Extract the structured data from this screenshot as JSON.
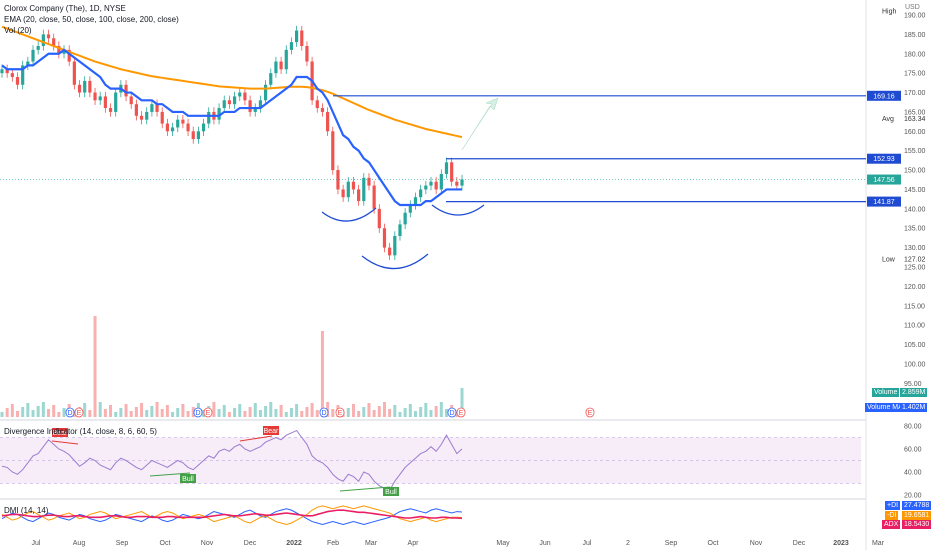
{
  "header": {
    "title": "Clorox Company (The), 1D, NYSE",
    "ema_label": "EMA (20, close, 50, close, 100, close, 200, close)",
    "vol_label": "Vol (20)",
    "currency": "USD"
  },
  "colors": {
    "ema20": "#2962ff",
    "ema50": "#43a047",
    "ema100": "#e57373",
    "ema200": "#ff9800",
    "up": "#26a69a",
    "down": "#ef5350",
    "level_line": "#1e4bd2",
    "rsi_line": "#9c7bd0",
    "dmi_plus": "#2962ff",
    "dmi_minus": "#ff9800",
    "adx": "#e91e63"
  },
  "chart_data": [
    {
      "type": "candlestick",
      "name": "price",
      "y_ticks": [
        125,
        130,
        135,
        140,
        145,
        150,
        155,
        160,
        165,
        170,
        175,
        180,
        185,
        190
      ],
      "lower_ticks": [
        95,
        100,
        105,
        110,
        115,
        120
      ],
      "x_ticks": [
        "Jul",
        "Aug",
        "Sep",
        "Oct",
        "Nov",
        "Dec",
        "2022",
        "Feb",
        "Mar",
        "Apr",
        "May",
        "Jun",
        "Jul",
        "2",
        "Sep",
        "Oct",
        "Nov",
        "Dec",
        "2023",
        "Mar"
      ],
      "price_labels": [
        {
          "text": "High",
          "value": 191
        },
        {
          "text": "Avg",
          "value": 163.34
        },
        {
          "text": "Low",
          "value": 127.02
        }
      ],
      "levels": [
        {
          "value": 169.16,
          "label": "169.16"
        },
        {
          "value": 152.93,
          "label": "152.93"
        },
        {
          "value": 141.87,
          "label": "141.87"
        }
      ],
      "last_price": {
        "value": 147.56,
        "label": "147.56"
      },
      "high_value": "191",
      "avg_value": "163.34",
      "low_value": "127.02",
      "close_series": [
        176,
        175,
        174,
        172,
        177,
        178,
        181,
        182,
        185,
        184,
        182,
        180,
        181,
        178,
        172,
        170,
        173,
        170,
        168,
        169,
        166,
        165,
        170,
        172,
        169,
        167,
        164,
        163,
        165,
        167,
        165,
        162,
        160,
        161,
        163,
        162,
        160,
        158,
        160,
        162,
        165,
        163,
        166,
        168,
        167,
        169,
        170,
        168,
        165,
        166,
        168,
        172,
        175,
        178,
        176,
        181,
        183,
        186,
        182,
        178,
        168,
        166,
        165,
        160,
        150,
        145,
        143,
        147,
        145,
        142,
        148,
        146,
        140,
        135,
        130,
        128,
        133,
        136,
        139,
        141,
        143,
        145,
        146,
        147,
        145,
        149,
        152,
        147,
        146,
        147.56
      ],
      "ema20": [
        177,
        176,
        176,
        176,
        176,
        177,
        177,
        178,
        179,
        180,
        180,
        180,
        181,
        180,
        179,
        178,
        177,
        176,
        175,
        174,
        172,
        171,
        171,
        171,
        170,
        170,
        169,
        168,
        168,
        168,
        167,
        167,
        166,
        165,
        165,
        165,
        164,
        164,
        164,
        164,
        164,
        164,
        164,
        165,
        165,
        165,
        166,
        166,
        166,
        166,
        166,
        167,
        168,
        169,
        170,
        171,
        172,
        174,
        174,
        174,
        173,
        171,
        170,
        168,
        165,
        162,
        159,
        158,
        156,
        155,
        153,
        152,
        150,
        148,
        146,
        144,
        142,
        141,
        141,
        141,
        141,
        141,
        142,
        142,
        143,
        144,
        145,
        145,
        145,
        145
      ],
      "ema200": [
        187,
        186.5,
        186,
        185.5,
        185,
        184.5,
        184,
        183.5,
        183,
        182.5,
        182,
        181.5,
        181,
        180.5,
        180,
        179.5,
        179,
        178.5,
        178,
        177.6,
        177.2,
        176.8,
        176.4,
        176,
        175.7,
        175.4,
        175.1,
        174.8,
        174.5,
        174.2,
        174,
        173.8,
        173.6,
        173.4,
        173.2,
        173,
        172.8,
        172.6,
        172.4,
        172.2,
        172,
        171.8,
        171.6,
        171.5,
        171.4,
        171.3,
        171.2,
        171.1,
        171,
        171,
        171,
        171,
        171.1,
        171.2,
        171.3,
        171.4,
        171.5,
        171.5,
        171.5,
        171.4,
        171.2,
        170.9,
        170.6,
        170.2,
        169.7,
        169.1,
        168.5,
        167.9,
        167.3,
        166.7,
        166.1,
        165.5,
        165,
        164.5,
        164,
        163.5,
        163,
        162.6,
        162.2,
        161.8,
        161.4,
        161,
        160.6,
        160.3,
        160,
        159.7,
        159.4,
        159.1,
        158.8,
        158.5
      ],
      "volume_events": [
        "D",
        "E",
        "D",
        "E",
        "D",
        "E",
        "D",
        "E",
        "E"
      ]
    },
    {
      "type": "line",
      "name": "Divergence Indicator",
      "label": "Divergence Indicator (14, close, 8, 6, 60, 5)",
      "y_ticks": [
        20.0,
        40.0,
        60.0,
        80.0
      ],
      "ylim": [
        20,
        80
      ],
      "values": [
        45,
        44,
        40,
        38,
        42,
        48,
        54,
        56,
        62,
        68,
        64,
        60,
        58,
        55,
        50,
        45,
        48,
        52,
        50,
        46,
        44,
        42,
        48,
        52,
        50,
        47,
        44,
        42,
        46,
        50,
        48,
        46,
        44,
        47,
        50,
        48,
        44,
        42,
        46,
        50,
        54,
        52,
        58,
        60,
        58,
        62,
        64,
        60,
        58,
        60,
        62,
        66,
        68,
        70,
        68,
        72,
        74,
        76,
        70,
        64,
        54,
        50,
        48,
        44,
        38,
        34,
        32,
        38,
        36,
        32,
        40,
        38,
        32,
        28,
        26,
        24,
        32,
        38,
        44,
        48,
        52,
        56,
        58,
        62,
        58,
        64,
        72,
        64,
        56,
        60
      ],
      "signals": [
        {
          "label": "Bear",
          "kind": "bear"
        },
        {
          "label": "Bull",
          "kind": "bull"
        },
        {
          "label": "Bear",
          "kind": "bear"
        },
        {
          "label": "Bull",
          "kind": "bull"
        }
      ]
    },
    {
      "type": "line",
      "name": "DMI",
      "label": "DMI (14, 14)",
      "series": [
        {
          "name": "+DI",
          "value": "27.4788",
          "values": [
            18,
            22,
            26,
            24,
            20,
            16,
            14,
            18,
            22,
            26,
            24,
            20,
            18,
            16,
            20,
            24,
            22,
            18,
            16,
            14,
            16,
            20,
            24,
            22,
            20,
            18,
            16,
            14,
            18,
            22,
            20,
            16,
            14,
            16,
            20,
            24,
            22,
            20,
            18,
            20,
            24,
            28,
            26,
            24,
            22,
            20,
            24,
            28,
            30,
            26,
            22,
            20,
            24,
            28,
            30,
            32,
            30,
            26,
            22,
            18,
            14,
            12,
            10,
            12,
            14,
            12,
            10,
            12,
            14,
            12,
            10,
            12,
            14,
            16,
            18,
            20,
            24,
            28,
            30,
            32,
            30,
            28,
            26,
            30,
            32,
            30,
            28,
            26,
            28,
            27.4788
          ]
        },
        {
          "name": "-DI",
          "value": "19.6581",
          "values": [
            24,
            20,
            16,
            18,
            22,
            26,
            28,
            24,
            20,
            16,
            18,
            22,
            24,
            26,
            22,
            18,
            20,
            24,
            26,
            28,
            26,
            22,
            18,
            20,
            22,
            24,
            26,
            28,
            24,
            20,
            22,
            26,
            28,
            26,
            22,
            18,
            20,
            22,
            24,
            22,
            18,
            14,
            16,
            18,
            20,
            22,
            18,
            14,
            12,
            16,
            20,
            22,
            18,
            14,
            12,
            10,
            12,
            16,
            20,
            24,
            30,
            34,
            36,
            34,
            32,
            34,
            36,
            34,
            32,
            34,
            36,
            34,
            32,
            30,
            28,
            26,
            22,
            18,
            16,
            14,
            16,
            18,
            20,
            16,
            14,
            16,
            18,
            20,
            20,
            19.6581
          ]
        },
        {
          "name": "ADX",
          "value": "18.5430",
          "values": [
            22,
            23,
            24,
            24,
            23,
            22,
            21,
            21,
            22,
            23,
            23,
            22,
            21,
            21,
            22,
            22,
            21,
            20,
            20,
            20,
            21,
            22,
            22,
            21,
            20,
            20,
            21,
            21,
            21,
            20,
            20,
            20,
            21,
            21,
            20,
            20,
            20,
            20,
            20,
            20,
            21,
            22,
            23,
            24,
            23,
            22,
            22,
            23,
            24,
            25,
            24,
            23,
            23,
            24,
            25,
            26,
            25,
            24,
            23,
            22,
            22,
            24,
            26,
            28,
            29,
            30,
            30,
            29,
            28,
            27,
            27,
            26,
            25,
            24,
            23,
            22,
            21,
            20,
            19,
            19,
            20,
            21,
            20,
            19,
            19,
            20,
            20,
            19,
            19,
            18.543
          ]
        }
      ]
    }
  ],
  "volume_labels": {
    "volume": "Volume",
    "volume_value": "2.859M",
    "volume_ma": "Volume MA",
    "volume_ma_value": "1.402M"
  },
  "dmi_legend": {
    "plus": "+DI",
    "minus": "-DI",
    "adx": "ADX"
  }
}
